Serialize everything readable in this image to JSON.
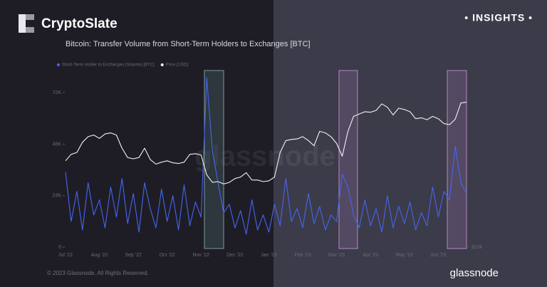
{
  "header": {
    "brand": "CryptoSlate",
    "badge": "• INSIGHTS •"
  },
  "chart_data": {
    "type": "line",
    "title": "Bitcoin: Transfer Volume from Short-Term Holders to Exchanges [BTC]",
    "watermark": "glassnode",
    "categories": [
      "Jul '22",
      null,
      null,
      null,
      null,
      null,
      "Aug '22",
      null,
      null,
      null,
      null,
      null,
      "Sep '22",
      null,
      null,
      null,
      null,
      null,
      "Oct '22",
      null,
      null,
      null,
      null,
      null,
      "Nov '22",
      null,
      null,
      null,
      null,
      null,
      "Dec '22",
      null,
      null,
      null,
      null,
      null,
      "Jan '23",
      null,
      null,
      null,
      null,
      null,
      "Feb '23",
      null,
      null,
      null,
      null,
      null,
      "Mar '23",
      null,
      null,
      null,
      null,
      null,
      "Apr '23",
      null,
      null,
      null,
      null,
      null,
      "May '23",
      null,
      null,
      null,
      null,
      null,
      "Jun '23",
      null,
      null,
      null,
      null,
      null
    ],
    "series": [
      {
        "name": "Short-Term Holder to Exchanges (Volume) [BTC]",
        "color": "#4466f0",
        "values": [
          35000,
          12000,
          26000,
          8000,
          30000,
          15000,
          22000,
          9000,
          28000,
          14000,
          32000,
          11000,
          25000,
          7000,
          30000,
          18000,
          9000,
          27000,
          12000,
          24000,
          8000,
          29000,
          10000,
          21000,
          14000,
          79000,
          45000,
          30000,
          16000,
          20000,
          9000,
          17000,
          6000,
          22000,
          8000,
          15000,
          7000,
          20000,
          10000,
          32000,
          12000,
          18000,
          9000,
          25000,
          11000,
          19000,
          8000,
          15000,
          12000,
          34000,
          28000,
          15000,
          9000,
          22000,
          10000,
          18000,
          7000,
          24000,
          9000,
          19000,
          11000,
          21000,
          8000,
          16000,
          10000,
          28000,
          14000,
          26000,
          22000,
          47000,
          30000,
          25000
        ]
      },
      {
        "name": "Price [USD]",
        "color": "#f2f2f2",
        "axis": "y2",
        "values": [
          19500,
          20500,
          20800,
          22500,
          23500,
          23800,
          23200,
          24000,
          24200,
          23800,
          21500,
          20000,
          19800,
          20000,
          21500,
          19700,
          19000,
          19300,
          19500,
          19200,
          19100,
          19300,
          20500,
          20600,
          20400,
          17500,
          16500,
          16600,
          16300,
          16500,
          17000,
          17200,
          17800,
          16800,
          16800,
          16600,
          16700,
          17200,
          20800,
          22800,
          23000,
          23100,
          23500,
          22800,
          21900,
          24500,
          24200,
          23500,
          22300,
          20200,
          24500,
          27500,
          28000,
          28500,
          28400,
          28800,
          30300,
          29500,
          27800,
          29300,
          29000,
          28500,
          27000,
          27200,
          26800,
          27500,
          27000,
          26000,
          25800,
          26900,
          30500,
          30700
        ]
      }
    ],
    "ylim": [
      0,
      82000
    ],
    "yticks": [
      0,
      {
        "value": 24000,
        "label": "24K"
      },
      {
        "value": 48000,
        "label": "48K"
      },
      {
        "value": 72000,
        "label": "72K"
      }
    ],
    "y2lim": [
      10000,
      39000
    ],
    "y2scale": "log",
    "y2ticks": [
      {
        "value": 10000,
        "label": "$10k"
      }
    ],
    "grid": false,
    "legend": "top-left"
  },
  "footer": {
    "copyright": "© 2023 Glassnode. All Rights Reserved.",
    "logo": "glassnode"
  }
}
